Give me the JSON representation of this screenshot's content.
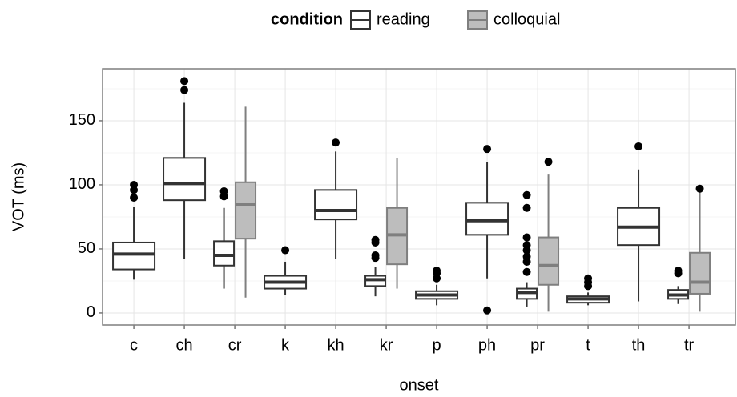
{
  "chart_data": {
    "type": "boxplot",
    "x_label": "onset",
    "y_label": "VOT (ms)",
    "legend_title": "condition",
    "legend_position": "top",
    "grid": true,
    "ylim": [
      -9.4,
      190.6
    ],
    "yticks": [
      0,
      50,
      100,
      150
    ],
    "yminor": [
      25,
      75,
      125,
      175
    ],
    "categories": [
      "c",
      "ch",
      "cr",
      "k",
      "kh",
      "kr",
      "p",
      "ph",
      "pr",
      "t",
      "th",
      "tr"
    ],
    "series": [
      {
        "name": "reading",
        "color": "#ffffff",
        "stroke": "#333333",
        "values": [
          {
            "min": 26,
            "q1": 34,
            "median": 46,
            "q3": 55,
            "max": 83,
            "outliers": [
              90,
              96,
              100
            ]
          },
          {
            "min": 42,
            "q1": 88,
            "median": 101,
            "q3": 121,
            "max": 164,
            "outliers": [
              174,
              181
            ]
          },
          {
            "min": 19,
            "q1": 37,
            "median": 45,
            "q3": 56,
            "max": 82,
            "outliers": [
              91,
              95
            ]
          },
          {
            "min": 14,
            "q1": 19,
            "median": 24,
            "q3": 29,
            "max": 40,
            "outliers": [
              49
            ]
          },
          {
            "min": 42,
            "q1": 73,
            "median": 80,
            "q3": 96,
            "max": 126,
            "outliers": [
              133
            ]
          },
          {
            "min": 13,
            "q1": 21,
            "median": 26,
            "q3": 29,
            "max": 36,
            "outliers": [
              43,
              45,
              55,
              57
            ]
          },
          {
            "min": 6,
            "q1": 11,
            "median": 14,
            "q3": 17,
            "max": 22,
            "outliers": [
              27,
              31,
              33
            ]
          },
          {
            "min": 27,
            "q1": 61,
            "median": 72,
            "q3": 86,
            "max": 118,
            "outliers": [
              2,
              128
            ]
          },
          {
            "min": 5,
            "q1": 11,
            "median": 16,
            "q3": 19,
            "max": 24,
            "outliers": [
              32,
              40,
              44,
              49,
              53,
              59,
              82,
              92
            ]
          },
          {
            "min": 6,
            "q1": 8,
            "median": 11,
            "q3": 13,
            "max": 16,
            "outliers": [
              21,
              24,
              27
            ]
          },
          {
            "min": 9,
            "q1": 53,
            "median": 67,
            "q3": 82,
            "max": 112,
            "outliers": [
              130
            ]
          },
          {
            "min": 7,
            "q1": 11,
            "median": 14,
            "q3": 18,
            "max": 21,
            "outliers": [
              31,
              33
            ]
          }
        ]
      },
      {
        "name": "colloquial",
        "color": "#bdbdbd",
        "stroke": "#7f7f7f",
        "values": [
          null,
          null,
          {
            "min": 12,
            "q1": 58,
            "median": 85,
            "q3": 102,
            "max": 161,
            "outliers": []
          },
          null,
          null,
          {
            "min": 19,
            "q1": 38,
            "median": 61,
            "q3": 82,
            "max": 121,
            "outliers": []
          },
          null,
          null,
          {
            "min": 1,
            "q1": 22,
            "median": 37,
            "q3": 59,
            "max": 108,
            "outliers": [
              118
            ]
          },
          null,
          null,
          {
            "min": 1,
            "q1": 15,
            "median": 24,
            "q3": 47,
            "max": 94,
            "outliers": [
              97
            ]
          }
        ]
      }
    ]
  }
}
